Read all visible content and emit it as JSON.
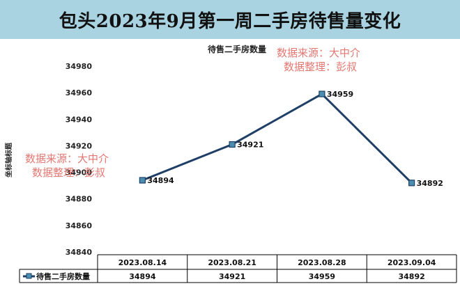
{
  "header": {
    "title": "包头2023年9月第一周二手房待售量变化"
  },
  "watermarks": [
    {
      "line1": "数据来源：大中介",
      "line2": "数据整理：彭叔"
    },
    {
      "line1": "数据来源：大中介",
      "line2": "数据整理：彭叔"
    }
  ],
  "chart_data": {
    "type": "line",
    "title": "待售二手房数量",
    "ylabel": "坐标轴标题",
    "xlabel": "",
    "categories": [
      "2023.08.14",
      "2023.08.21",
      "2023.08.28",
      "2023.09.04"
    ],
    "series": [
      {
        "name": "待售二手房数量",
        "values": [
          34894,
          34921,
          34959,
          34892
        ],
        "color": "#1f3f66",
        "marker_color": "#4a8fb0"
      }
    ],
    "ylim": [
      34840,
      34980
    ],
    "yticks": [
      "34840",
      "34860",
      "34880",
      "34900",
      "34920",
      "34940",
      "34960",
      "34980"
    ],
    "data_labels": [
      "34894",
      "34921",
      "34959",
      "34892"
    ],
    "grid": false,
    "legend": "data-table-left"
  }
}
